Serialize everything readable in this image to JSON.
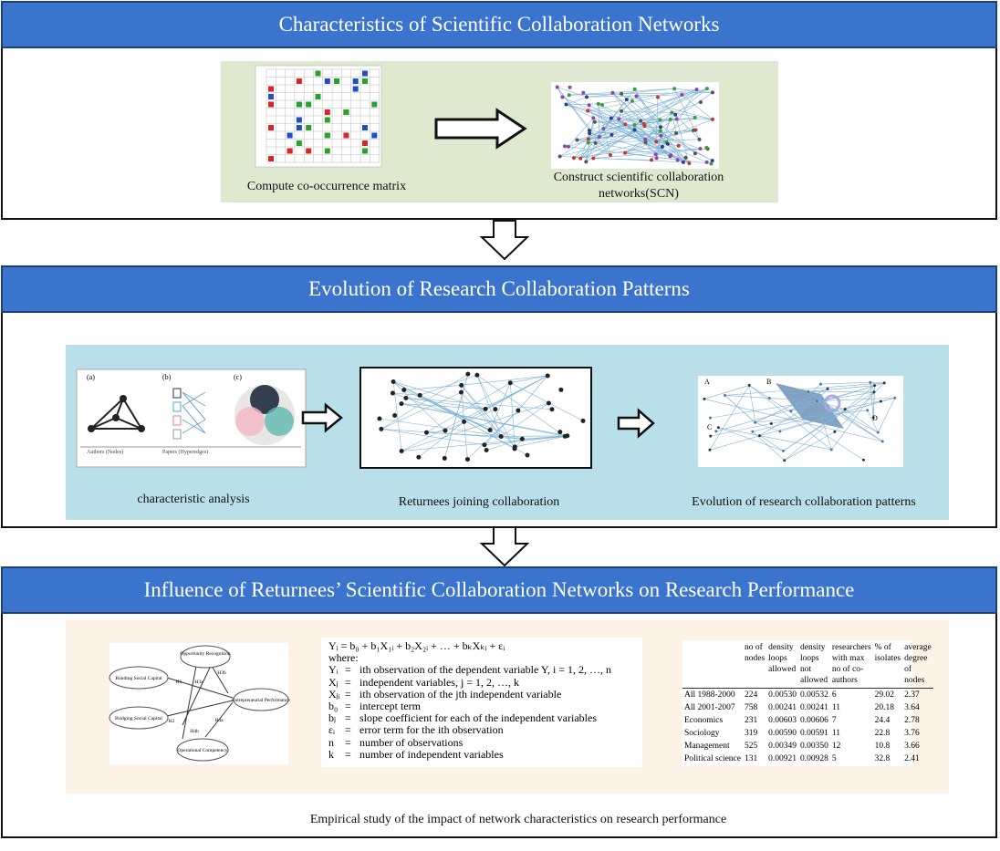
{
  "sections": [
    {
      "title": "Characteristics of Scientific Collaboration Networks",
      "captions": [
        "Compute co-occurrence matrix",
        "Construct scientific collaboration networks(SCN)"
      ]
    },
    {
      "title": "Evolution of Research Collaboration Patterns",
      "captions": [
        "characteristic analysis",
        "Returnees joining collaboration",
        "Evolution of research collaboration patterns"
      ]
    },
    {
      "title": "Influence of Returnees’ Scientific Collaboration Networks on Research Performance",
      "captions": [
        "Empirical study of the impact of network characteristics on research performance"
      ]
    }
  ],
  "hypergraph": {
    "panels": [
      "(a)",
      "(b)",
      "(c)"
    ],
    "axis_labels": [
      "Authors (Nodes)",
      "Papers (Hyperedges)"
    ]
  },
  "topology": {
    "panels": [
      "A",
      "B",
      "C",
      "D"
    ]
  },
  "model": {
    "constructs": [
      "Opportunity Recognition",
      "Bonding Social Capital",
      "Bridging Social Capital",
      "Entrepreneurial Performance",
      "Operational Competency"
    ],
    "hypotheses": [
      "H1",
      "H2",
      "H3a",
      "H3b",
      "H4a",
      "H4b"
    ]
  },
  "regression": {
    "equation": "Yᵢ = b₀ + b₁X₁ᵢ + b₂X₂ᵢ + … + bₖXₖᵢ + εᵢ",
    "where": "where:",
    "terms": [
      {
        "symbol": "Yᵢ",
        "definition": "ith observation of the dependent variable Y, i = 1, 2, …, n"
      },
      {
        "symbol": "Xⱼ",
        "definition": "independent variables, j = 1, 2, …, k"
      },
      {
        "symbol": "Xⱼᵢ",
        "definition": "ith observation of the jth independent variable"
      },
      {
        "symbol": "b₀",
        "definition": "intercept term"
      },
      {
        "symbol": "bⱼ",
        "definition": "slope coefficient for each of the independent variables"
      },
      {
        "symbol": "εᵢ",
        "definition": "error term for the ith observation"
      },
      {
        "symbol": "n",
        "definition": "number of observations"
      },
      {
        "symbol": "k",
        "definition": "number of independent variables"
      }
    ]
  },
  "table": {
    "header": [
      "no of nodes",
      "density loops allowed",
      "density loops not allowed",
      "researchers with max no of co-authors",
      "% of isolates",
      "average degree of nodes"
    ],
    "rows": [
      [
        "All 1988-2000",
        "224",
        "0.00530",
        "0.00532",
        "6",
        "29.02",
        "2.37"
      ],
      [
        "All 2001-2007",
        "758",
        "0.00241",
        "0.00241",
        "11",
        "20.18",
        "3.64"
      ],
      [
        "Economics",
        "231",
        "0.00603",
        "0.00606",
        "7",
        "24.4",
        "2.78"
      ],
      [
        "Sociology",
        "319",
        "0.00590",
        "0.00591",
        "11",
        "22.8",
        "3.76"
      ],
      [
        "Management",
        "525",
        "0.00349",
        "0.00350",
        "12",
        "10.8",
        "3.66"
      ],
      [
        "Political science",
        "131",
        "0.00921",
        "0.00928",
        "5",
        "32.8",
        "2.41"
      ]
    ]
  }
}
